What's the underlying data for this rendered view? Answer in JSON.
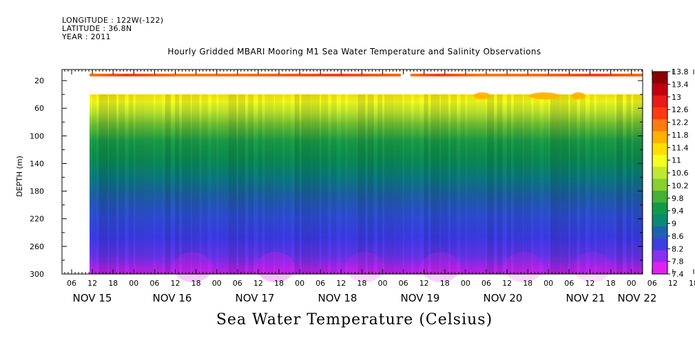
{
  "header": {
    "longitude": "LONGITUDE : 122W(-122)",
    "latitude": "LATITUDE : 36.8N",
    "year": "YEAR : 2011"
  },
  "chart_data": {
    "type": "heatmap",
    "title": "Hourly Gridded MBARI Mooring M1 Sea Water Temperature and Salinity Observations",
    "xlabel": "Sea Water Temperature (Celsius)",
    "ylabel": "DEPTH (m)",
    "ylim": [
      300,
      4
    ],
    "y_ticks": [
      20,
      60,
      100,
      140,
      180,
      220,
      260,
      300
    ],
    "x_hour_ticks": [
      "06",
      "12",
      "18",
      "00",
      "06",
      "12",
      "18",
      "00",
      "06",
      "12",
      "18",
      "00",
      "06",
      "12",
      "18",
      "00",
      "06",
      "12",
      "18",
      "00",
      "06",
      "12",
      "18",
      "00",
      "06",
      "12",
      "18",
      "00",
      "06",
      "12",
      "18",
      "00"
    ],
    "x_day_labels": [
      "NOV 15",
      "NOV 16",
      "NOV 17",
      "NOV 18",
      "NOV 19",
      "NOV 20",
      "NOV 21",
      "NOV 22"
    ],
    "colorbar": {
      "levels": [
        13.8,
        13.4,
        13,
        12.6,
        12.2,
        11.8,
        11.4,
        11,
        10.6,
        10.2,
        9.8,
        9.4,
        9,
        8.6,
        8.2,
        7.8,
        7.4
      ],
      "colors": [
        "#8b0000",
        "#c00010",
        "#e81a1a",
        "#ff3a10",
        "#ff7a10",
        "#ffb000",
        "#ffe000",
        "#f4ff20",
        "#bfe830",
        "#86d030",
        "#44b038",
        "#119a48",
        "#0a8a70",
        "#2060b0",
        "#3a40e0",
        "#8a30f0",
        "#e020f0"
      ]
    },
    "series": [
      {
        "depth_range": "10-14 m",
        "description": "near-surface band approx 12-13 C"
      },
      {
        "depth_range": "40-300 m",
        "description": "temperature decreasing with depth from ~11.5 C to ~7.5 C"
      }
    ]
  }
}
